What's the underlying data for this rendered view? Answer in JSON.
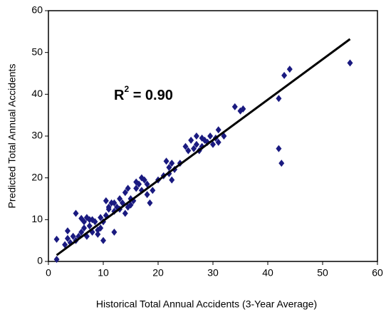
{
  "chart_data": {
    "type": "scatter",
    "xlabel": "Historical Total Annual Accidents (3-Year Average)",
    "ylabel": "Predicted Total Annual Accidents",
    "annotation": [
      "R",
      "2",
      " = 0.90"
    ],
    "xlim": [
      0,
      60
    ],
    "ylim": [
      0,
      60
    ],
    "xticks": [
      0,
      10,
      20,
      30,
      40,
      50,
      60
    ],
    "yticks": [
      0,
      10,
      20,
      30,
      40,
      50,
      60
    ],
    "grid": false,
    "series": [
      {
        "color": "#1a1a80",
        "x": [
          1.5,
          1.5,
          3,
          3.5,
          3.5,
          4,
          4.5,
          5,
          5,
          5.5,
          6,
          6,
          6.5,
          6.5,
          7,
          7,
          7.5,
          7.5,
          8,
          8,
          8.5,
          9,
          9,
          9.5,
          9.5,
          10,
          10,
          10.5,
          10.5,
          11,
          11,
          11.5,
          12,
          12,
          12,
          12.5,
          13,
          13,
          13.5,
          14,
          14,
          14.5,
          14.5,
          15,
          15,
          15.5,
          16,
          16,
          16.5,
          17,
          17,
          17.5,
          18,
          18,
          18.5,
          19,
          20,
          21,
          21.5,
          22,
          22,
          22.5,
          22.5,
          23,
          24,
          25,
          25.5,
          26,
          26.5,
          27,
          27,
          27.5,
          28,
          28,
          28.5,
          29,
          29.5,
          30,
          30.5,
          31,
          31,
          32,
          34,
          35,
          35.5,
          42,
          42,
          42.5,
          43,
          44,
          55
        ],
        "values": [
          0.5,
          5.3,
          4,
          5.5,
          7.3,
          4.5,
          6,
          11.5,
          5,
          6,
          7,
          10.3,
          8,
          9.5,
          6,
          10.5,
          8.5,
          10,
          10,
          7,
          9.5,
          7.5,
          6.5,
          8,
          10.5,
          5,
          9.5,
          11,
          14.5,
          13,
          12.5,
          14,
          7,
          12,
          14,
          13,
          12.5,
          15,
          14,
          11.5,
          16.5,
          17.5,
          13,
          15,
          13.5,
          14.5,
          17.5,
          19,
          18.5,
          20,
          17,
          19.5,
          16,
          18.5,
          14,
          17,
          19.5,
          20.5,
          24,
          22.5,
          21,
          23.5,
          19.5,
          22,
          23.5,
          27.5,
          26.5,
          29,
          27,
          28,
          30,
          26.5,
          27.5,
          29.5,
          29,
          28.5,
          30,
          28,
          29.5,
          31.5,
          28.5,
          30,
          37,
          36,
          36.5,
          39,
          27,
          23.5,
          44.5,
          46,
          47.5
        ]
      }
    ],
    "trendline": {
      "color": "#000000",
      "x": [
        1.5,
        55
      ],
      "values": [
        1.5,
        53.2
      ]
    }
  }
}
